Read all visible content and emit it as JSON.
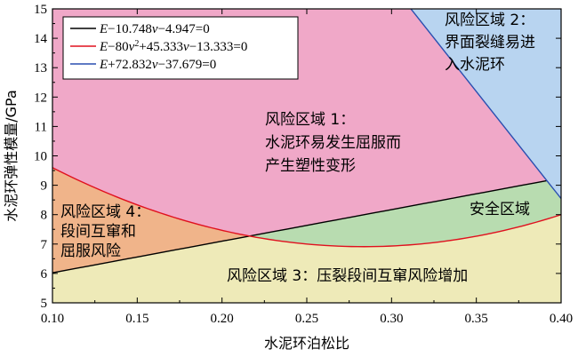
{
  "chart_data": {
    "type": "line",
    "xlabel": "水泥环泊松比",
    "ylabel": "水泥环弹性模量/GPa",
    "xlim": [
      0.1,
      0.4
    ],
    "ylim": [
      5,
      15
    ],
    "xticks": [
      0.1,
      0.15,
      0.2,
      0.25,
      0.3,
      0.35,
      0.4
    ],
    "yticks": [
      5,
      6,
      7,
      8,
      9,
      10,
      11,
      12,
      13,
      14,
      15
    ],
    "series": [
      {
        "name": "E−10.748ν−4.947=0",
        "legend_parts": [
          "E",
          "−10.748",
          "ν",
          "−4.947=0"
        ],
        "color": "#000000",
        "equation": {
          "a": 0,
          "b": 10.748,
          "c": 4.947
        }
      },
      {
        "name": "E−80ν²+45.333ν−13.333=0",
        "legend_parts": [
          "E",
          "−80",
          "ν",
          "2",
          "+45.333",
          "ν",
          "−13.333=0"
        ],
        "color": "#e0101e",
        "equation": {
          "a": 80,
          "b": -45.333,
          "c": 13.333
        }
      },
      {
        "name": "E+72.832ν−37.679=0",
        "legend_parts": [
          "E",
          "+72.832",
          "ν",
          "−37.679=0"
        ],
        "color": "#2a4fb0",
        "equation": {
          "a": 0,
          "b": -72.832,
          "c": 37.679
        }
      }
    ],
    "regions": [
      {
        "id": "risk1",
        "lines": [
          "风险区域 1：",
          "水泥环易发生屈服而",
          "产生塑性变形"
        ],
        "color": "#f0a8c8"
      },
      {
        "id": "risk2",
        "lines": [
          "风险区域 2：",
          "界面裂缝易进",
          "入水泥环"
        ],
        "color": "#b8d4f0"
      },
      {
        "id": "risk3",
        "lines": [
          "风险区域 3：压裂段间互窜风险增加"
        ],
        "color": "#eeeab8"
      },
      {
        "id": "risk4",
        "lines": [
          "风险区域 4：",
          "段间互窜和",
          "屈服风险"
        ],
        "color": "#f0b48a"
      },
      {
        "id": "safe",
        "lines": [
          "安全区域"
        ],
        "color": "#b8dcb0"
      }
    ],
    "grid": false,
    "legend_position": "top-left"
  }
}
